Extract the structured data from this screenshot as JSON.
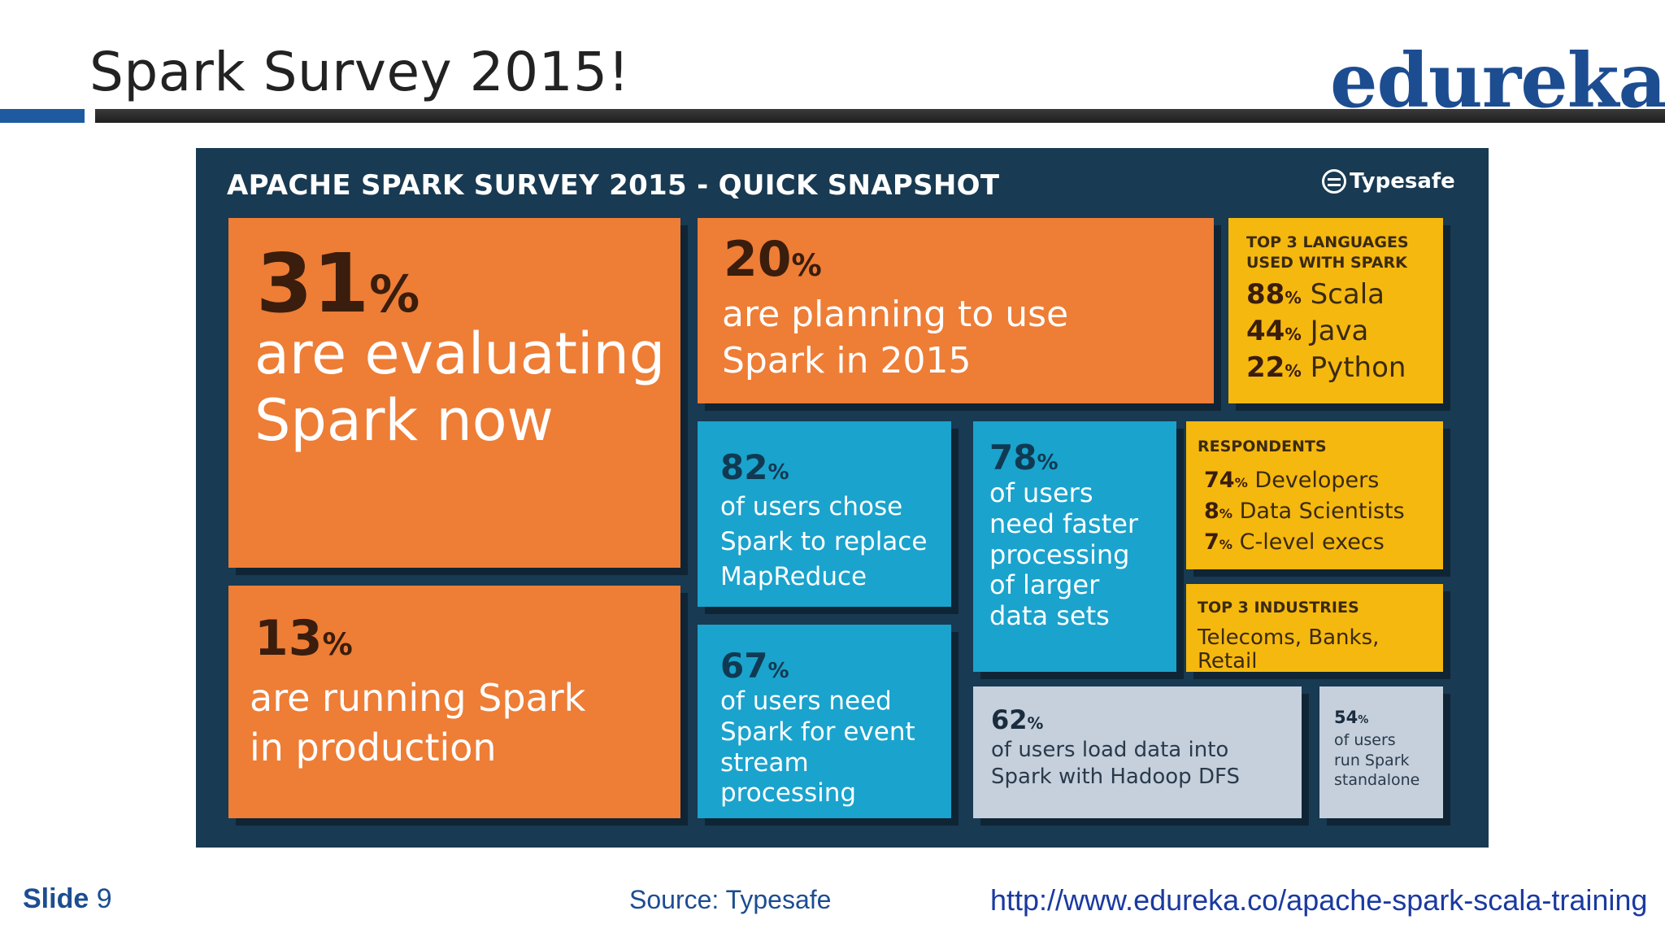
{
  "slide": {
    "title": "Spark Survey 2015!",
    "logo_text": "edureka!",
    "footer": {
      "slide_word": "Slide",
      "slide_number": "9",
      "source": "Source: Typesafe",
      "url": "http://www.edureka.co/apache-spark-scala-training"
    }
  },
  "infographic": {
    "title": "APACHE SPARK SURVEY 2015 - QUICK SNAPSHOT",
    "brand": "Typesafe",
    "tiles": {
      "evaluating": {
        "pct": "31",
        "line1": "are evaluating",
        "line2": "Spark now"
      },
      "planning": {
        "pct": "20",
        "line1": "are planning to use",
        "line2": "Spark in 2015"
      },
      "production": {
        "pct": "13",
        "line1": "are running Spark",
        "line2": "in production"
      },
      "replace": {
        "pct": "82",
        "line1": "of users chose",
        "line2": "Spark to replace",
        "line3": "MapReduce"
      },
      "event": {
        "pct": "67",
        "line1": "of users need",
        "line2": "Spark for event",
        "line3": "stream processing"
      },
      "faster": {
        "pct": "78",
        "line1": "of users",
        "line2": "need faster",
        "line3": "processing",
        "line4": "of larger",
        "line5": "data sets"
      },
      "hadoop": {
        "pct": "62",
        "line1": "of users load data into",
        "line2": "Spark with Hadoop DFS"
      },
      "standalone": {
        "pct": "54",
        "line1": "of users",
        "line2": "run Spark",
        "line3": "standalone"
      },
      "languages": {
        "heading1": "TOP 3 LANGUAGES",
        "heading2": "USED WITH SPARK",
        "items": [
          {
            "pct": "88",
            "label": "Scala"
          },
          {
            "pct": "44",
            "label": "Java"
          },
          {
            "pct": "22",
            "label": "Python"
          }
        ]
      },
      "respondents": {
        "heading": "RESPONDENTS",
        "items": [
          {
            "pct": "74",
            "label": "Developers"
          },
          {
            "pct": "8",
            "label": "Data Scientists"
          },
          {
            "pct": "7",
            "label": "C-level execs"
          }
        ]
      },
      "industries": {
        "heading": "TOP 3 INDUSTRIES",
        "text": "Telecoms, Banks, Retail"
      }
    },
    "percent_sign": "%"
  },
  "colors": {
    "panel_bg": "#183a52",
    "orange": "#ee7d36",
    "blue": "#1aa3cd",
    "yellow": "#f5b80f",
    "gray": "#c5d0dc",
    "brand_blue": "#1d4d91"
  }
}
